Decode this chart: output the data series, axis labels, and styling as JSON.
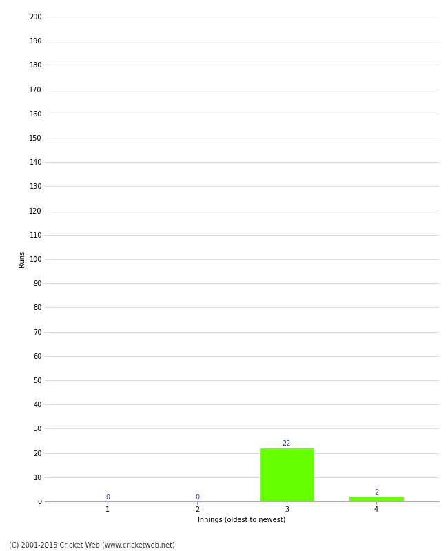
{
  "categories": [
    1,
    2,
    3,
    4
  ],
  "values": [
    0,
    0,
    22,
    2
  ],
  "bar_color": "#66ff00",
  "xlabel": "Innings (oldest to newest)",
  "ylabel": "Runs",
  "ylim": [
    0,
    200
  ],
  "yticks": [
    0,
    10,
    20,
    30,
    40,
    50,
    60,
    70,
    80,
    90,
    100,
    110,
    120,
    130,
    140,
    150,
    160,
    170,
    180,
    190,
    200
  ],
  "value_label_color": "#3333cc",
  "value_label_fontsize": 7,
  "axis_tick_fontsize": 7,
  "ylabel_fontsize": 7,
  "xlabel_fontsize": 7,
  "footer_text": "(C) 2001-2015 Cricket Web (www.cricketweb.net)",
  "footer_fontsize": 7,
  "background_color": "#ffffff",
  "grid_color": "#cccccc",
  "bar_width": 0.6
}
